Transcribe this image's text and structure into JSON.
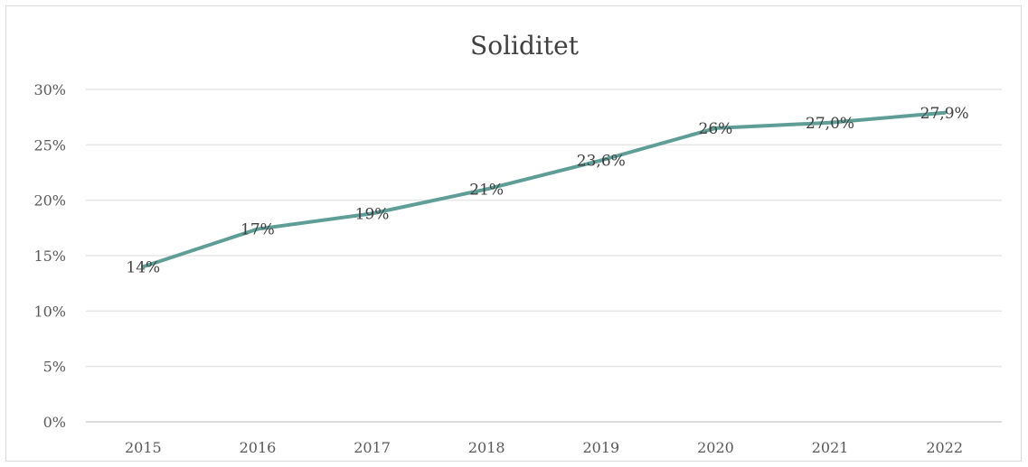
{
  "chart_data": {
    "type": "line",
    "title": "Soliditet",
    "xlabel": "",
    "ylabel": "",
    "categories": [
      "2015",
      "2016",
      "2017",
      "2018",
      "2019",
      "2020",
      "2021",
      "2022"
    ],
    "series": [
      {
        "values": [
          14,
          17.4,
          18.8,
          21,
          23.6,
          26.5,
          27.0,
          27.9
        ],
        "labels": [
          "14%",
          "17%",
          "19%",
          "21%",
          "23,6%",
          "26%",
          "27,0%",
          "27,9%"
        ],
        "color": "#5f9e96"
      }
    ],
    "ylim": [
      0,
      30
    ],
    "yticks": [
      {
        "value": 0,
        "label": "0%"
      },
      {
        "value": 5,
        "label": "5%"
      },
      {
        "value": 10,
        "label": "10%"
      },
      {
        "value": 15,
        "label": "15%"
      },
      {
        "value": 20,
        "label": "20%"
      },
      {
        "value": 25,
        "label": "25%"
      },
      {
        "value": 30,
        "label": "30%"
      }
    ],
    "grid": true,
    "legend": "none"
  }
}
